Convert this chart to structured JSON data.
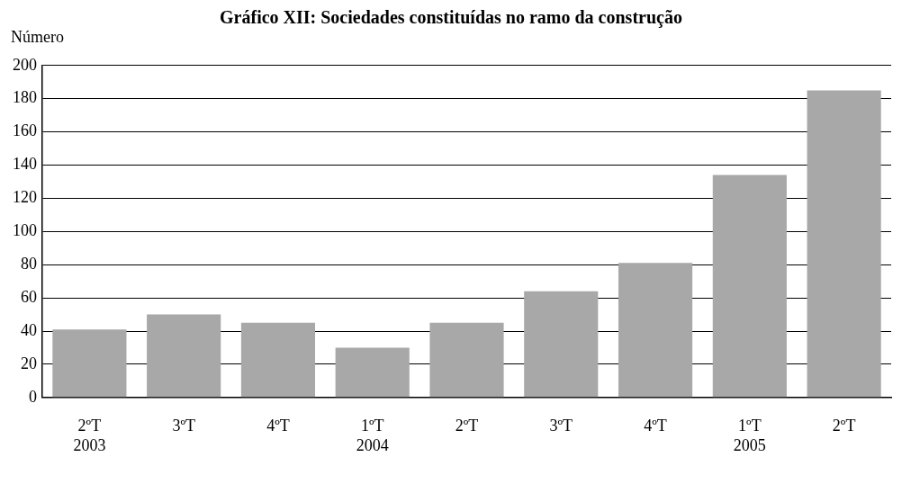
{
  "chart_data": {
    "type": "bar",
    "title": "Gráfico XII: Sociedades constituídas no ramo da construção",
    "ylabel": "Número",
    "categories": [
      "2ºT\n2003",
      "3ºT",
      "4ºT",
      "1ºT\n2004",
      "2ºT",
      "3ºT",
      "4ºT",
      "1ºT\n2005",
      "2ºT"
    ],
    "values": [
      41,
      50,
      45,
      30,
      45,
      64,
      81,
      134,
      185
    ],
    "color": "#a8a8a8",
    "ylim": [
      0,
      200
    ],
    "yticks": [
      0,
      20,
      40,
      60,
      80,
      100,
      120,
      140,
      160,
      180,
      200
    ],
    "grid": "y"
  }
}
